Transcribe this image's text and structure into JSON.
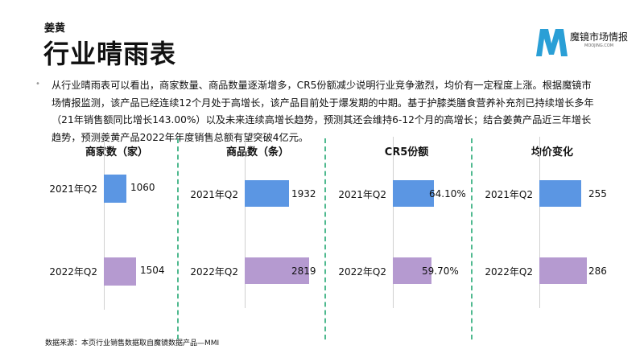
{
  "header": {
    "subtitle": "姜黄",
    "title": "行业晴雨表",
    "logo_text": "魔镜市场情报",
    "logo_sub": "MOOJING.COM"
  },
  "summary": "从行业晴雨表可以看出，商家数量、商品数量逐渐增多，CR5份额减少说明行业竞争激烈，均价有一定程度上涨。根据魔镜市场情报监测，该产品已经连续12个月处于高增长，该产品目前处于爆发期的中期。基于护膝类膳食营养补充剂已持续增长多年（21年销售额同比增长143.00%）以及未来连续高增长趋势，预测其还会维持6-12个月的高增长；结合姜黄产品近三年增长趋势，预测姜黄产品2022年年度销售总额有望突破4亿元。",
  "source": "数据来源：本页行业销售数据取自魔镜数据产品—MMI",
  "colors": {
    "2021": "#5b96e3",
    "2022": "#b59ad0",
    "divider": "#4fb98f"
  },
  "chart_data": [
    {
      "type": "bar",
      "orientation": "horizontal",
      "title": "商家数（家）",
      "categories": [
        "2021年Q2",
        "2022年Q2"
      ],
      "values": [
        1060,
        1504
      ],
      "labels": [
        "1060",
        "1504"
      ]
    },
    {
      "type": "bar",
      "orientation": "horizontal",
      "title": "商品数（条）",
      "categories": [
        "2021年Q2",
        "2022年Q2"
      ],
      "values": [
        1932,
        2819
      ],
      "labels": [
        "1932",
        "2819"
      ]
    },
    {
      "type": "bar",
      "orientation": "horizontal",
      "title": "CR5份额",
      "categories": [
        "2021年Q2",
        "2022年Q2"
      ],
      "values": [
        64.1,
        59.7
      ],
      "labels": [
        "64.10%",
        "59.70%"
      ]
    },
    {
      "type": "bar",
      "orientation": "horizontal",
      "title": "均价变化",
      "categories": [
        "2021年Q2",
        "2022年Q2"
      ],
      "values": [
        255,
        286
      ],
      "labels": [
        "255",
        "286"
      ]
    }
  ]
}
